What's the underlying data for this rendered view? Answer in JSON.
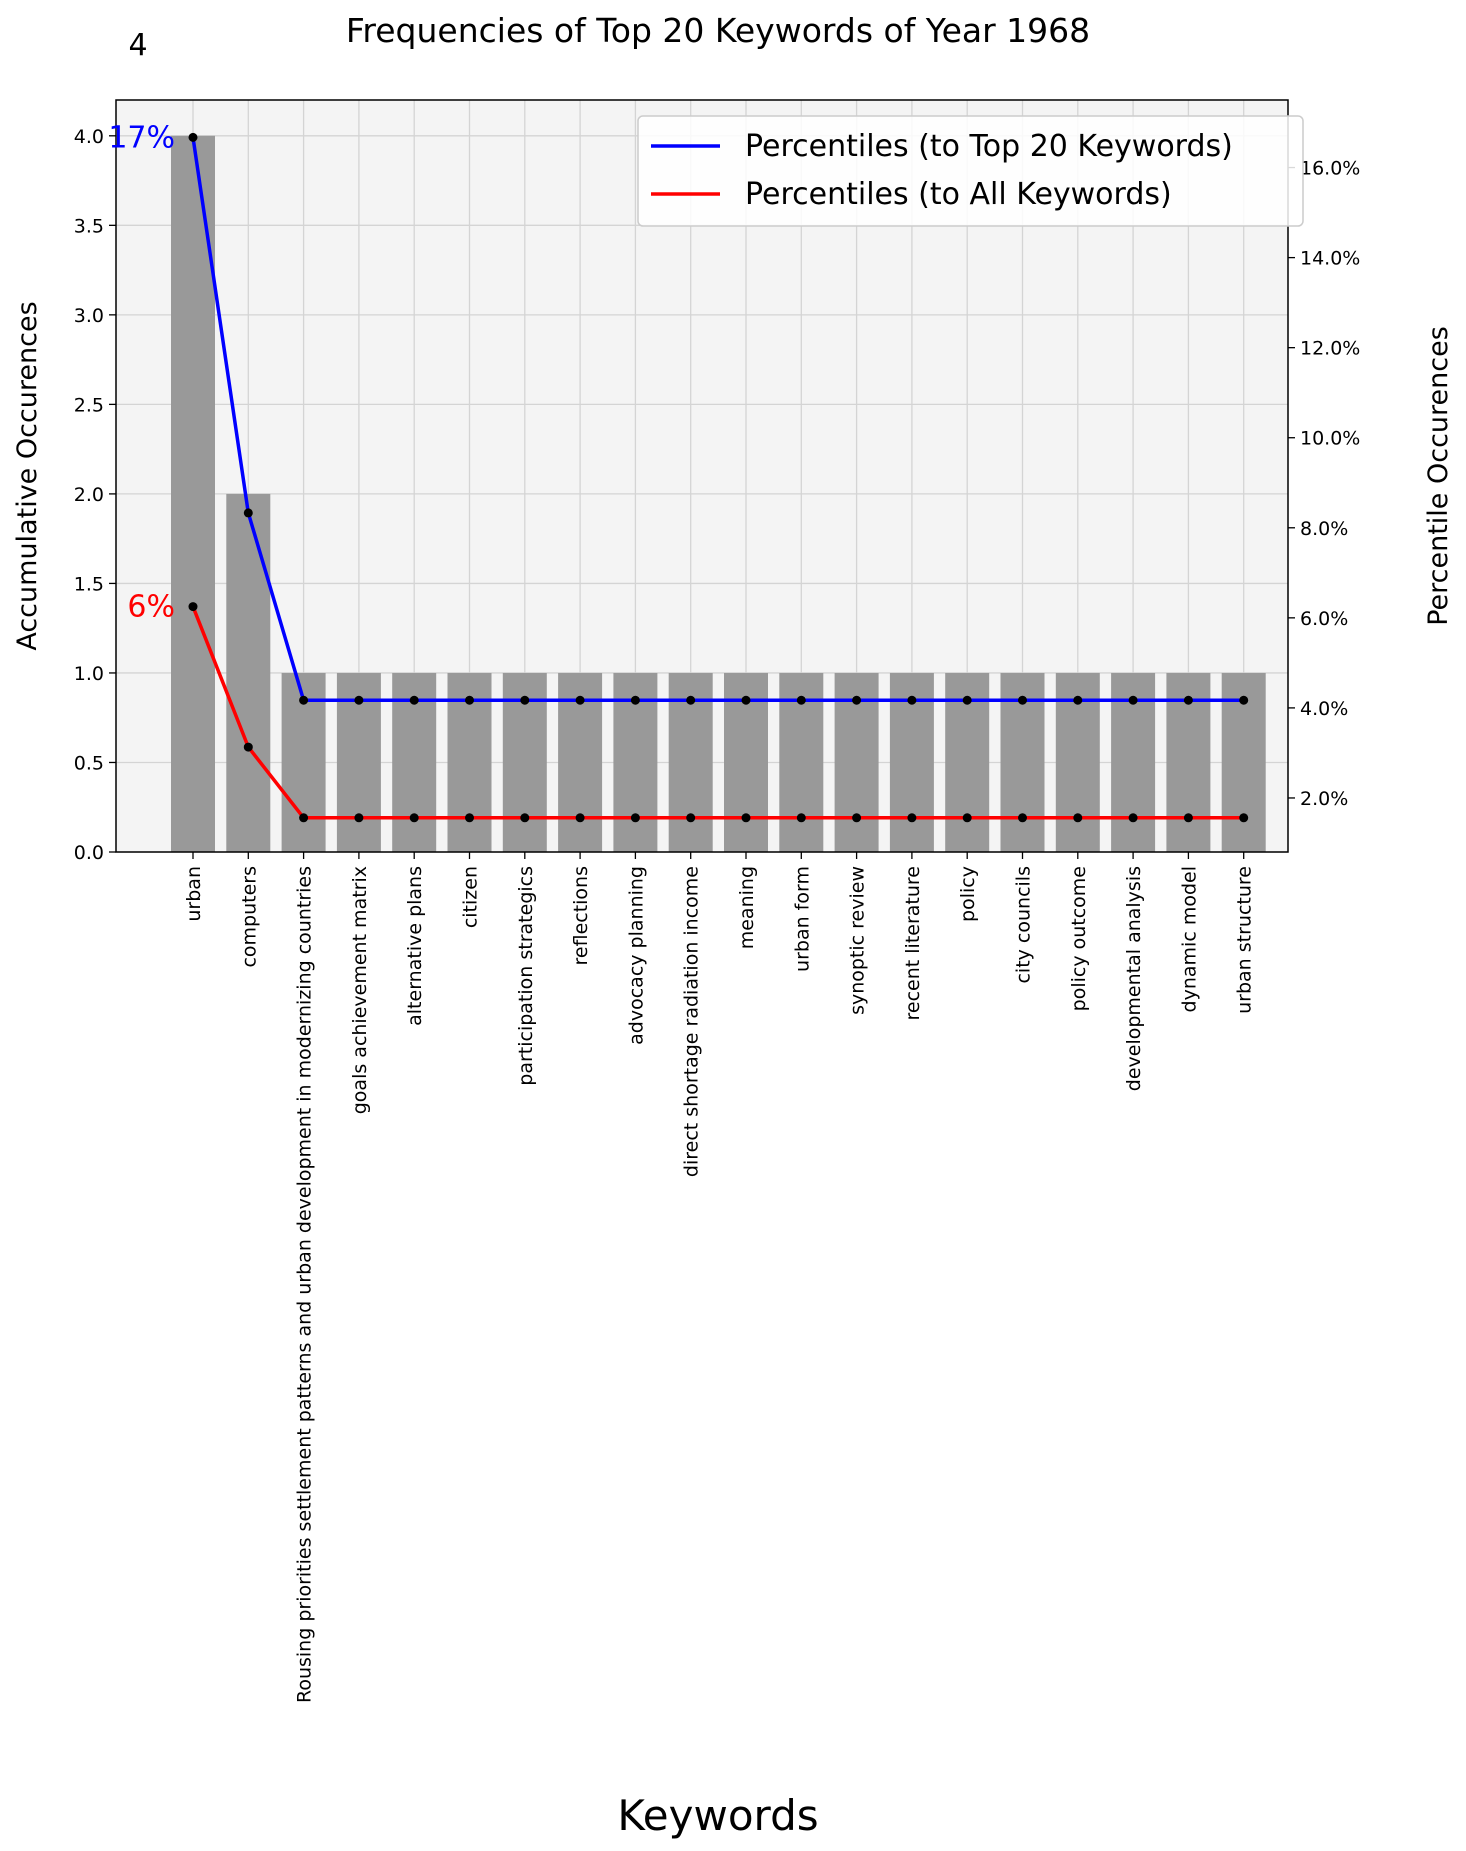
{
  "chart_data": {
    "type": "bar",
    "title": "Frequencies of Top 20 Keywords of Year 1968",
    "corner_label": "4",
    "xlabel": "Keywords",
    "ylabel": "Accumulative Occurences",
    "y2label": "Percentile Occurences",
    "ylim": [
      0,
      4.2
    ],
    "y2lim": [
      0.8,
      17.5
    ],
    "yticks": [
      "0.0",
      "0.5",
      "1.0",
      "1.5",
      "2.0",
      "2.5",
      "3.0",
      "3.5",
      "4.0"
    ],
    "y2ticks": [
      "2.0%",
      "4.0%",
      "6.0%",
      "8.0%",
      "10.0%",
      "12.0%",
      "14.0%",
      "16.0%"
    ],
    "grid": true,
    "legend_position": "top-right",
    "categories": [
      "urban",
      "computers",
      "Rousing priorities settlement patterns and urban development in modernizing countries",
      "goals achievement matrix",
      "alternative plans",
      "citizen",
      "participation strategics",
      "reflections",
      "advocacy planning",
      "direct shortage radiation income",
      "meaning",
      "urban form",
      "synoptic review",
      "recent literature",
      "policy",
      "city councils",
      "policy outcome",
      "developmental analysis",
      "dynamic model",
      "urban structure"
    ],
    "values": [
      4,
      2,
      1,
      1,
      1,
      1,
      1,
      1,
      1,
      1,
      1,
      1,
      1,
      1,
      1,
      1,
      1,
      1,
      1,
      1
    ],
    "series": [
      {
        "name": "Percentiles (to Top 20 Keywords)",
        "color": "#0000ff",
        "values": [
          16.67,
          8.33,
          4.17,
          4.17,
          4.17,
          4.17,
          4.17,
          4.17,
          4.17,
          4.17,
          4.17,
          4.17,
          4.17,
          4.17,
          4.17,
          4.17,
          4.17,
          4.17,
          4.17,
          4.17
        ]
      },
      {
        "name": "Percentiles (to All Keywords)",
        "color": "#ff0000",
        "values": [
          6.25,
          3.13,
          1.56,
          1.56,
          1.56,
          1.56,
          1.56,
          1.56,
          1.56,
          1.56,
          1.56,
          1.56,
          1.56,
          1.56,
          1.56,
          1.56,
          1.56,
          1.56,
          1.56,
          1.56
        ]
      }
    ],
    "annotations": [
      {
        "text": "17%",
        "color": "#0000ff"
      },
      {
        "text": "6%",
        "color": "#ff0000"
      }
    ],
    "bar_color": "#999999",
    "plot_bg": "#f4f4f4"
  }
}
